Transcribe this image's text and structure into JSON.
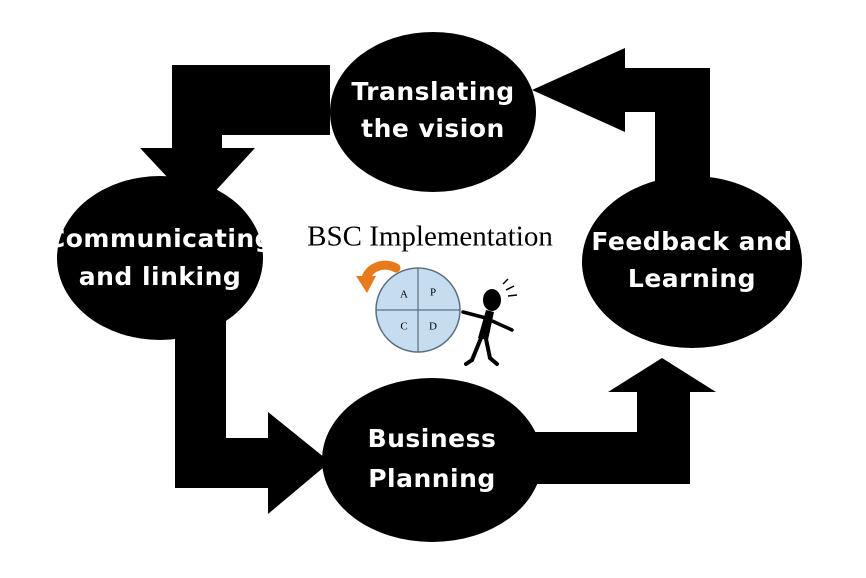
{
  "center": {
    "title": "BSC Implementation",
    "pdca": {
      "q1": "A",
      "q2": "P",
      "q3": "C",
      "q4": "D"
    }
  },
  "nodes": {
    "translating": {
      "line1": "Translating",
      "line2": "the vision"
    },
    "communicating": {
      "line1": "Communicating",
      "line2": "and linking"
    },
    "business": {
      "line1": "Business",
      "line2": "Planning"
    },
    "feedback": {
      "line1": "Feedback and",
      "line2": "Learning"
    }
  },
  "colors": {
    "node_fill": "#000000",
    "node_text": "#ffffff",
    "pdca_fill": "#c6ddf0",
    "refresh_arrow": "#e87a1e"
  },
  "icons": {
    "refresh": "refresh-arrow-icon",
    "person": "stick-figure-icon"
  }
}
